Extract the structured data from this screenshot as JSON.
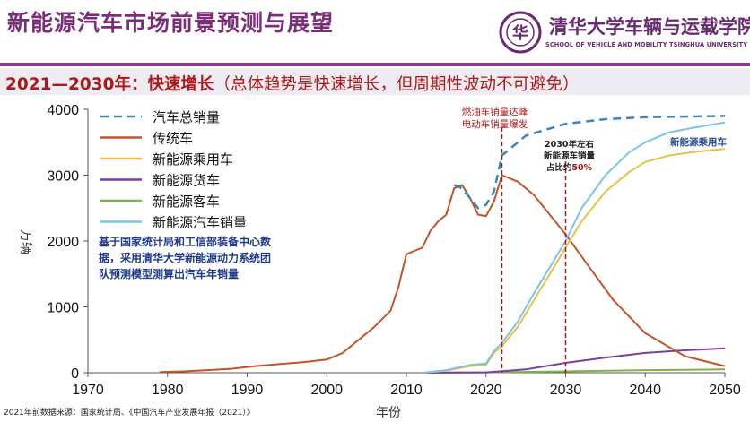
{
  "title": "新能源汽车市场前景预测与展望",
  "school": {
    "name_cn": "清华大学车辆与运载学院",
    "name_en": "SCHOOL OF VEHICLE AND MOBILITY TSINGHUA UNIVERSITY",
    "logo_text": "华"
  },
  "subtitle": {
    "main": "2021—2030年：快速增长",
    "note": "（总体趋势是快速增长，但周期性波动不可避免）"
  },
  "source_note": "基于国家统计局和工信部装备中心数据，采用清华大学新能源动力系统团队预测模型测算出汽车年销量",
  "footer": "2021年前数据来源：国家统计局、《中国汽车产业发展年报（2021）》",
  "colors": {
    "total": "#3a86b5",
    "traditional": "#c0552a",
    "nev_passenger": "#eac04a",
    "nev_truck": "#7b3fa0",
    "nev_bus": "#7fb04c",
    "nev_total": "#7cc3e8",
    "marker": "#b01818"
  },
  "chart_data": {
    "type": "line",
    "xlabel": "年份",
    "ylabel": "万辆",
    "xlim": [
      1970,
      2050
    ],
    "ylim": [
      0,
      4000
    ],
    "xticks": [
      "1970",
      "1980",
      "1990",
      "2000",
      "2010",
      "2020",
      "2030",
      "2040",
      "2050"
    ],
    "yticks": [
      "0",
      "1000",
      "2000",
      "3000",
      "4000"
    ],
    "series": [
      {
        "name": "汽车总销量",
        "style": "dashed",
        "x": [
          2016,
          2017,
          2018,
          2019,
          2020,
          2021,
          2022,
          2025,
          2030,
          2035,
          2040,
          2045,
          2050
        ],
        "y": [
          2850,
          2800,
          2650,
          2500,
          2550,
          2750,
          3300,
          3600,
          3780,
          3850,
          3880,
          3890,
          3900
        ]
      },
      {
        "name": "传统车",
        "x": [
          1979,
          1982,
          1985,
          1988,
          1991,
          1994,
          1997,
          2000,
          2002,
          2004,
          2006,
          2008,
          2009,
          2010,
          2011,
          2012,
          2013,
          2014,
          2015,
          2016,
          2017,
          2018,
          2019,
          2020,
          2021,
          2022,
          2024,
          2026,
          2028,
          2030,
          2033,
          2036,
          2040,
          2045,
          2050
        ],
        "y": [
          10,
          20,
          40,
          60,
          100,
          130,
          160,
          200,
          300,
          500,
          700,
          940,
          1300,
          1800,
          1850,
          1900,
          2150,
          2300,
          2400,
          2800,
          2850,
          2650,
          2400,
          2380,
          2600,
          3000,
          2900,
          2700,
          2400,
          2100,
          1600,
          1100,
          600,
          250,
          100
        ]
      },
      {
        "name": "新能源乘用车",
        "x": [
          2012,
          2015,
          2018,
          2020,
          2021,
          2022,
          2024,
          2026,
          2028,
          2030,
          2032,
          2035,
          2038,
          2040,
          2043,
          2046,
          2050
        ],
        "y": [
          0,
          30,
          100,
          120,
          300,
          400,
          700,
          1100,
          1500,
          1900,
          2300,
          2750,
          3050,
          3200,
          3300,
          3350,
          3400
        ]
      },
      {
        "name": "新能源货车",
        "x": [
          2012,
          2020,
          2025,
          2030,
          2035,
          2040,
          2045,
          2050
        ],
        "y": [
          0,
          5,
          50,
          150,
          230,
          300,
          340,
          370
        ]
      },
      {
        "name": "新能源客车",
        "x": [
          2012,
          2020,
          2030,
          2040,
          2050
        ],
        "y": [
          0,
          5,
          20,
          40,
          50
        ]
      },
      {
        "name": "新能源汽车销量",
        "x": [
          2012,
          2015,
          2018,
          2020,
          2021,
          2022,
          2024,
          2026,
          2028,
          2030,
          2032,
          2035,
          2038,
          2040,
          2043,
          2046,
          2050
        ],
        "y": [
          0,
          40,
          120,
          140,
          330,
          450,
          780,
          1200,
          1600,
          2000,
          2500,
          3000,
          3350,
          3500,
          3650,
          3720,
          3800
        ]
      }
    ],
    "annotations": [
      {
        "x": 2022,
        "text_lines": [
          "燃油车销量达峰",
          "电动车销量爆发"
        ]
      },
      {
        "x": 2030,
        "text_lines": [
          "2030年左右",
          "新能源车销量",
          "占比约",
          "50%"
        ]
      }
    ],
    "series_label": "新能源乘用车"
  }
}
